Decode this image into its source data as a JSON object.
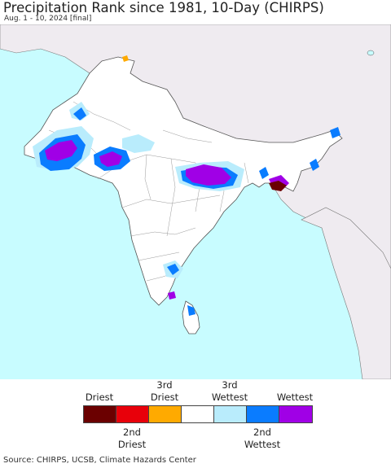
{
  "title": "Precipitation Rank since 1981, 10-Day (CHIRPS)",
  "subtitle": "Aug. 1 - 10, 2024 [final]",
  "colors": {
    "ocean": "#c8fcff",
    "land": "#ffffff",
    "outside": "#efebf0",
    "border": "#555555"
  },
  "legend": {
    "top_labels": [
      "Driest",
      "3rd\nDriest",
      "3rd\nWettest",
      "Wettest"
    ],
    "bottom_labels": [
      "2nd\nDriest",
      "2nd\nWettest"
    ],
    "swatches": [
      "#6b0000",
      "#e8000a",
      "#ffaa00",
      "#ffffff",
      "#b9ecfc",
      "#0a7cff",
      "#a000e6"
    ]
  },
  "source": "Source: CHIRPS, UCSB, Climate Hazards Center"
}
